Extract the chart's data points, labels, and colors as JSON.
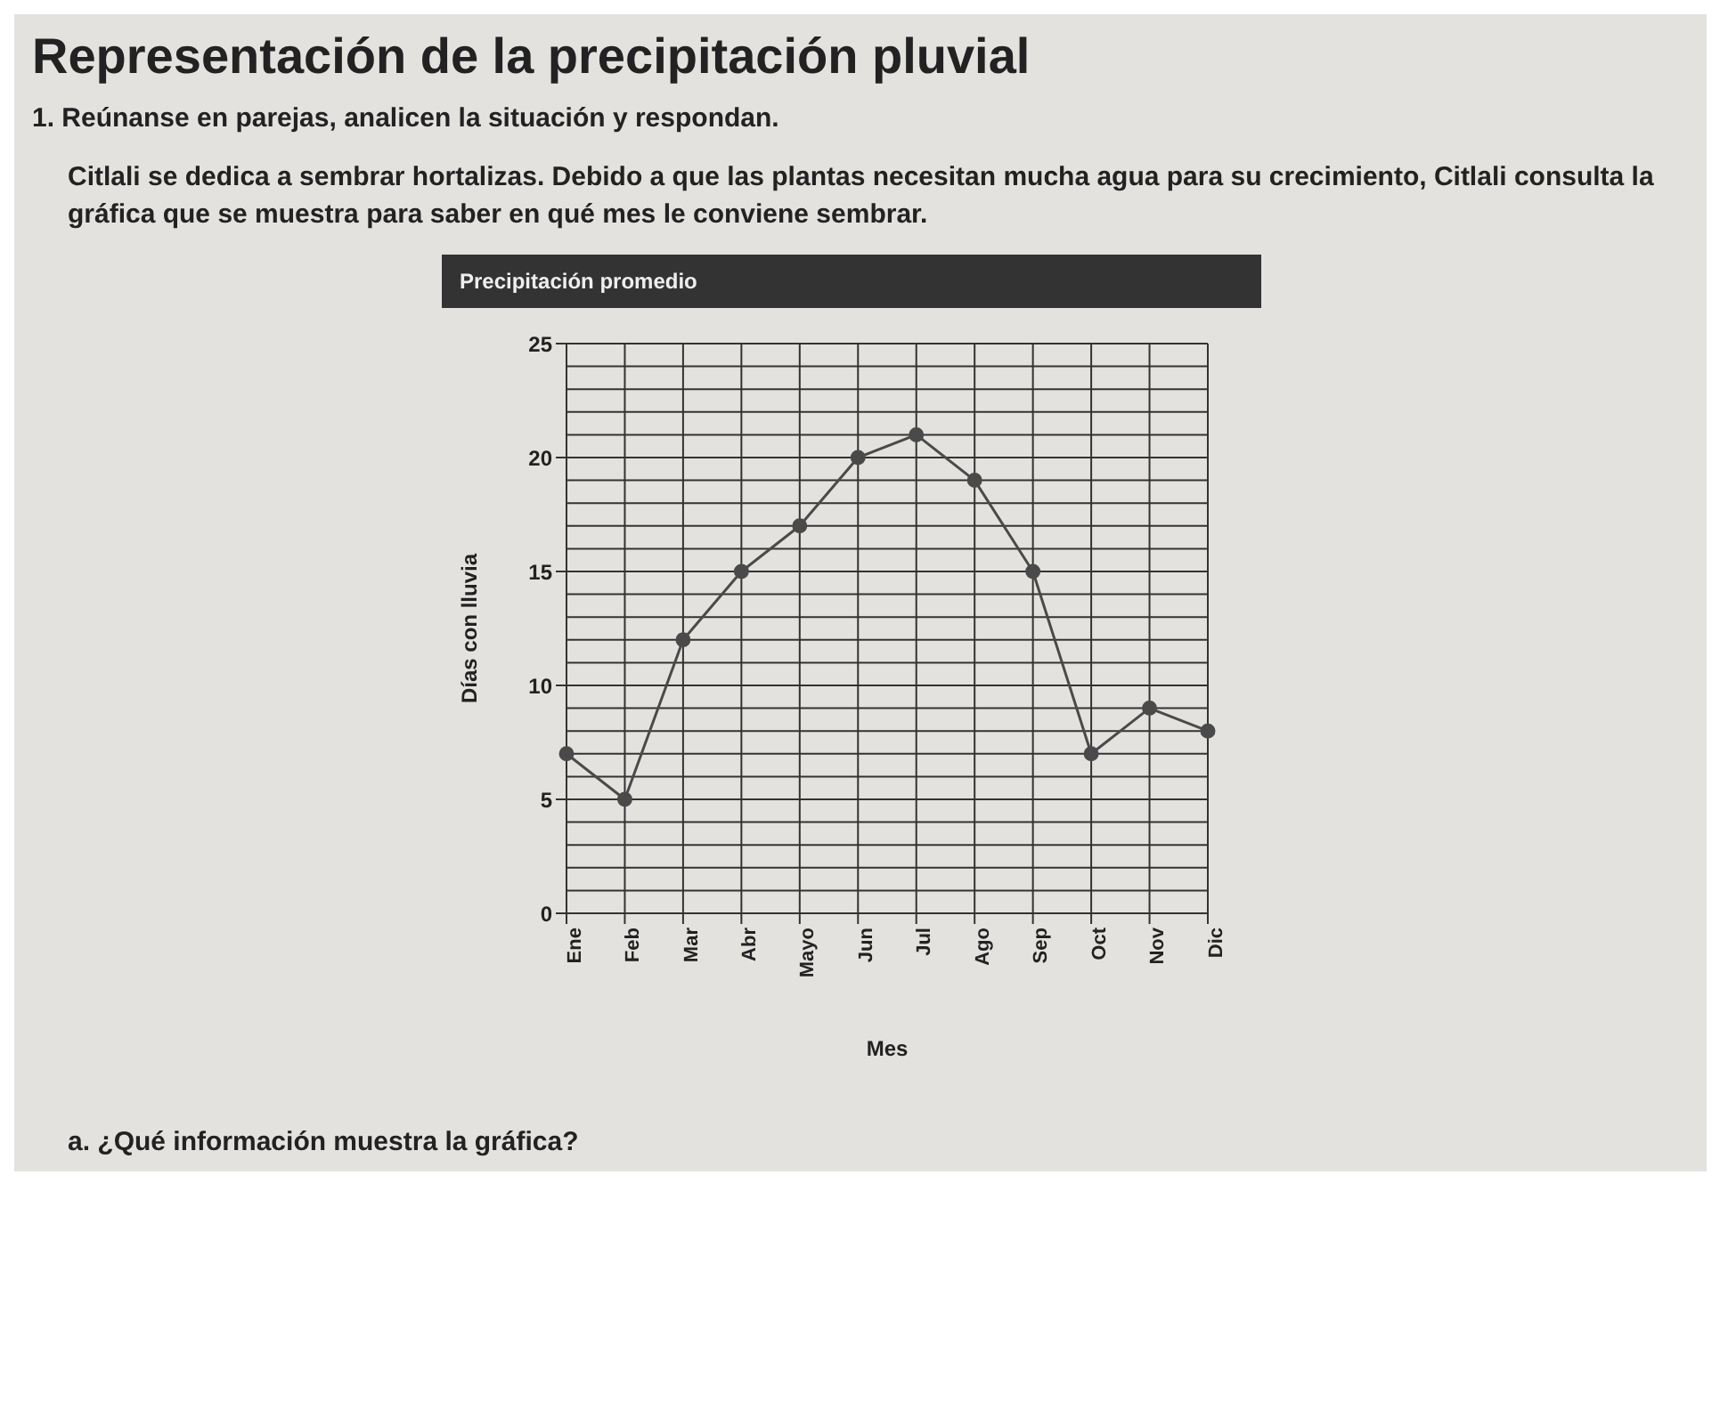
{
  "chart_data": {
    "type": "line",
    "title": "Precipitación promedio",
    "xlabel": "Mes",
    "ylabel": "Días con lluvia",
    "categories": [
      "Ene",
      "Feb",
      "Mar",
      "Abr",
      "Mayo",
      "Jun",
      "Jul",
      "Ago",
      "Sep",
      "Oct",
      "Nov",
      "Dic"
    ],
    "values": [
      7,
      5,
      12,
      15,
      17,
      20,
      21,
      19,
      15,
      7,
      9,
      8
    ],
    "color": "#4a4a4a",
    "ylim": [
      0,
      25
    ],
    "yticks": [
      0,
      5,
      10,
      15,
      20,
      25
    ],
    "grid": true,
    "marker": "circle",
    "line_style": "solid",
    "annotations": [
      "Representación de la precipitación pluvial",
      "1. Reúnanse en parejas, analicen la situación y respondan.",
      "Citlali se dedica a sembrar hortalizas. Debido a que las plantas necesitan mucha agua para su crecimiento, Citlali consulta la gráfica que se muestra para saber en qué mes le conviene sembrar.",
      "a. ¿Qué información muestra la gráfica?"
    ]
  }
}
